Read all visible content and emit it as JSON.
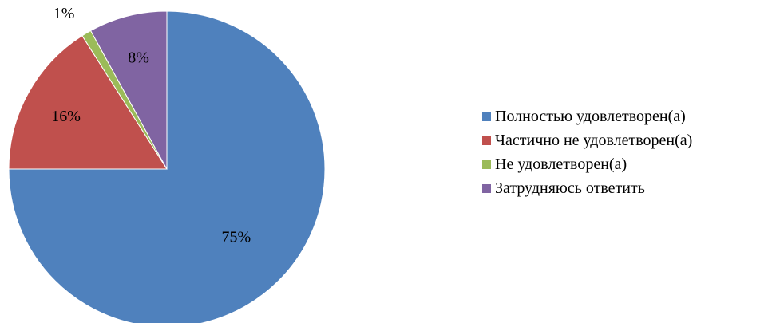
{
  "chart_data": {
    "type": "pie",
    "title": "",
    "slices": [
      {
        "label": "Полностью удовлетворен(а)",
        "value": 75,
        "value_label": "75%",
        "color": "#4F81BD"
      },
      {
        "label": "Частично не удовлетворен(а)",
        "value": 16,
        "value_label": "16%",
        "color": "#C0504D"
      },
      {
        "label": "Не удовлетворен(а)",
        "value": 1,
        "value_label": "1%",
        "color": "#9BBB59"
      },
      {
        "label": "Затрудняюсь ответить",
        "value": 8,
        "value_label": "8%",
        "color": "#8064A2"
      }
    ],
    "legend_position": "right"
  }
}
